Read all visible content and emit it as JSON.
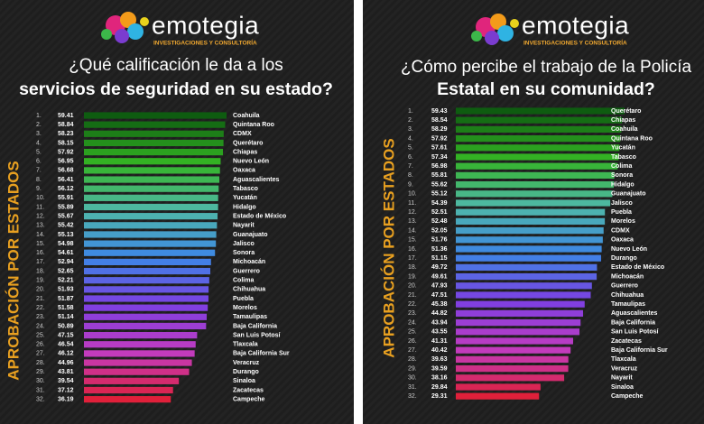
{
  "brand": {
    "name": "emotegia",
    "tagline": "INVESTIGACIONES Y CONSULTORÍA"
  },
  "chart_data": [
    {
      "type": "bar",
      "orientation": "horizontal",
      "title": "¿Qué calificación le da a los",
      "title_bold": "servicios de seguridad en su estado?",
      "y_label": "APROBACIÓN POR ESTADOS",
      "ranks": [
        "1.",
        "2.",
        "3.",
        "4.",
        "5.",
        "6.",
        "7.",
        "8.",
        "9.",
        "10.",
        "11.",
        "12.",
        "13.",
        "14.",
        "15.",
        "16.",
        "17.",
        "18.",
        "19.",
        "20.",
        "21.",
        "22.",
        "23.",
        "24.",
        "25.",
        "26.",
        "27.",
        "28.",
        "29.",
        "30.",
        "31.",
        "32."
      ],
      "categories": [
        "Coahuila",
        "Quintana Roo",
        "CDMX",
        "Querétaro",
        "Chiapas",
        "Nuevo León",
        "Oaxaca",
        "Aguascalientes",
        "Tabasco",
        "Yucatán",
        "Hidalgo",
        "Estado de México",
        "Nayarit",
        "Guanajuato",
        "Jalisco",
        "Sonora",
        "Michoacán",
        "Guerrero",
        "Colima",
        "Chihuahua",
        "Puebla",
        "Morelos",
        "Tamaulipas",
        "Baja California",
        "San Luis Potosí",
        "Tlaxcala",
        "Baja California Sur",
        "Veracruz",
        "Durango",
        "Sinaloa",
        "Zacatecas",
        "Campeche"
      ],
      "values": [
        59.41,
        58.84,
        58.23,
        58.15,
        57.92,
        56.95,
        56.68,
        56.41,
        56.12,
        55.91,
        55.89,
        55.67,
        55.42,
        55.13,
        54.98,
        54.61,
        52.94,
        52.65,
        52.21,
        51.93,
        51.87,
        51.58,
        51.14,
        50.89,
        47.15,
        46.54,
        46.12,
        44.96,
        43.81,
        39.54,
        37.12,
        36.19
      ],
      "color_stops": [
        "#0e5c10",
        "#34b524",
        "#4fb8a8",
        "#3d86e6",
        "#7d3fe2",
        "#c23cc0",
        "#e0203a"
      ]
    },
    {
      "type": "bar",
      "orientation": "horizontal",
      "title": "¿Cómo percibe el trabajo de la Policía",
      "title_bold": "Estatal en su comunidad?",
      "y_label": "APROBACIÓN POR ESTADOS",
      "ranks": [
        "1.",
        "2.",
        "3.",
        "4.",
        "5.",
        "6.",
        "7.",
        "8.",
        "9.",
        "10.",
        "11.",
        "12.",
        "13.",
        "14.",
        "15.",
        "16.",
        "17.",
        "18.",
        "19.",
        "20.",
        "21.",
        "22.",
        "23.",
        "24.",
        "25.",
        "26.",
        "27.",
        "28.",
        "29.",
        "30.",
        "31.",
        "32."
      ],
      "categories": [
        "Querétaro",
        "Chiapas",
        "Coahuila",
        "Quintana Roo",
        "Yucatán",
        "Tabasco",
        "Colima",
        "Sonora",
        "Hidalgo",
        "Guanajuato",
        "Jalisco",
        "Puebla",
        "Morelos",
        "CDMX",
        "Oaxaca",
        "Nuevo León",
        "Durango",
        "Estado de México",
        "Michoacán",
        "Guerrero",
        "Chihuahua",
        "Tamaulipas",
        "Aguascalientes",
        "Baja California",
        "San Luis Potosí",
        "Zacatecas",
        "Baja California Sur",
        "Tlaxcala",
        "Veracruz",
        "Nayarit",
        "Sinaloa",
        "Campeche"
      ],
      "values": [
        59.43,
        58.54,
        58.29,
        57.92,
        57.61,
        57.34,
        56.98,
        55.81,
        55.62,
        55.12,
        54.39,
        52.51,
        52.48,
        52.05,
        51.76,
        51.36,
        51.15,
        49.72,
        49.61,
        47.93,
        47.51,
        45.38,
        44.82,
        43.94,
        43.55,
        41.31,
        40.42,
        39.63,
        39.59,
        38.16,
        29.84,
        29.31
      ],
      "color_stops": [
        "#0e5c10",
        "#34b524",
        "#4fb8a8",
        "#3d86e6",
        "#7d3fe2",
        "#c23cc0",
        "#e0203a"
      ]
    }
  ]
}
